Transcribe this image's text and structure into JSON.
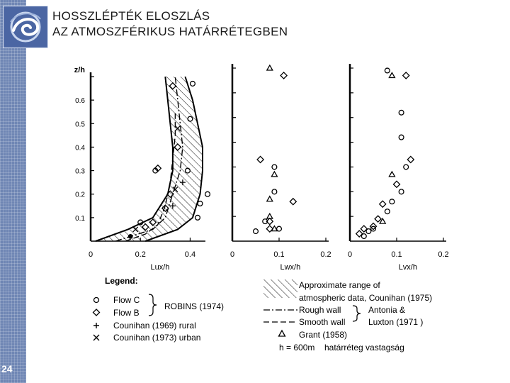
{
  "slide": {
    "title_line1": "HOSSZLÉPTÉK ELOSZLÁS",
    "title_line2": "AZ ATMOSZFÉRIKUS HATÁRRÉTEGBEN",
    "page_number": "24",
    "logo_icon": "swirl-logo-icon",
    "sidebar_color": "#6f86b4"
  },
  "chart_data": [
    {
      "type": "scatter",
      "panel": "Lux",
      "ylabel": "z/h",
      "xlabel": "Lux/h",
      "xlim": [
        0,
        0.45
      ],
      "ylim": [
        0,
        0.7
      ],
      "xticks": [
        "0",
        "0.2",
        "0.4"
      ],
      "yticks": [
        "0.1",
        "0.2",
        "0.3",
        "0.4",
        "0.5",
        "0.6"
      ],
      "series": [
        {
          "name": "Flow C",
          "marker": "circle",
          "points": [
            [
              0.41,
              0.67
            ],
            [
              0.4,
              0.52
            ],
            [
              0.39,
              0.3
            ],
            [
              0.47,
              0.2
            ],
            [
              0.44,
              0.16
            ],
            [
              0.43,
              0.1
            ],
            [
              0.26,
              0.3
            ],
            [
              0.2,
              0.08
            ]
          ]
        },
        {
          "name": "Flow B",
          "marker": "diamond",
          "points": [
            [
              0.33,
              0.66
            ],
            [
              0.35,
              0.4
            ],
            [
              0.27,
              0.31
            ],
            [
              0.32,
              0.2
            ],
            [
              0.3,
              0.14
            ],
            [
              0.25,
              0.08
            ],
            [
              0.22,
              0.06
            ]
          ]
        },
        {
          "name": "Counihan (1969) rural",
          "marker": "plus",
          "points": [
            [
              0.37,
              0.25
            ],
            [
              0.33,
              0.15
            ]
          ]
        },
        {
          "name": "Counihan (1973) urban",
          "marker": "cross",
          "points": [
            [
              0.35,
              0.48
            ],
            [
              0.34,
              0.22
            ],
            [
              0.18,
              0.05
            ]
          ]
        },
        {
          "name": "",
          "marker": "dot",
          "points": [
            [
              0.16,
              0.02
            ]
          ]
        }
      ],
      "curves": [
        {
          "name": "Approximate range of atmospheric data, Counihan (1975)",
          "style": "band-left",
          "points": [
            [
              0.02,
              0.0
            ],
            [
              0.15,
              0.05
            ],
            [
              0.25,
              0.1
            ],
            [
              0.31,
              0.2
            ],
            [
              0.33,
              0.3
            ],
            [
              0.33,
              0.4
            ],
            [
              0.32,
              0.5
            ],
            [
              0.31,
              0.6
            ],
            [
              0.3,
              0.7
            ]
          ]
        },
        {
          "name": "Approximate range of atmospheric data, Counihan (1975)",
          "style": "band-right",
          "points": [
            [
              0.22,
              0.0
            ],
            [
              0.35,
              0.05
            ],
            [
              0.41,
              0.1
            ],
            [
              0.44,
              0.2
            ],
            [
              0.45,
              0.3
            ],
            [
              0.45,
              0.4
            ],
            [
              0.43,
              0.5
            ],
            [
              0.41,
              0.6
            ],
            [
              0.38,
              0.7
            ]
          ]
        },
        {
          "name": "Rough wall",
          "style": "dashdot",
          "points": [
            [
              0.1,
              0.0
            ],
            [
              0.25,
              0.05
            ],
            [
              0.3,
              0.1
            ],
            [
              0.33,
              0.2
            ],
            [
              0.36,
              0.3
            ],
            [
              0.37,
              0.4
            ],
            [
              0.36,
              0.5
            ],
            [
              0.35,
              0.6
            ],
            [
              0.34,
              0.7
            ]
          ]
        },
        {
          "name": "Smooth wall",
          "style": "dashed",
          "points": [
            [
              0.14,
              0.0
            ],
            [
              0.22,
              0.03
            ],
            [
              0.27,
              0.07
            ],
            [
              0.3,
              0.15
            ],
            [
              0.32,
              0.25
            ],
            [
              0.33,
              0.35
            ],
            [
              0.34,
              0.45
            ],
            [
              0.34,
              0.55
            ]
          ]
        }
      ]
    },
    {
      "type": "scatter",
      "panel": "Lwx",
      "xlabel": "Lwx/h",
      "xlim": [
        0,
        0.2
      ],
      "ylim": [
        0,
        0.7
      ],
      "xticks": [
        "0",
        "0.1",
        "0.2"
      ],
      "series": [
        {
          "name": "Flow C",
          "marker": "circle",
          "points": [
            [
              0.09,
              0.3
            ],
            [
              0.09,
              0.2
            ],
            [
              0.1,
              0.05
            ],
            [
              0.05,
              0.04
            ],
            [
              0.07,
              0.08
            ]
          ]
        },
        {
          "name": "Flow B",
          "marker": "diamond",
          "points": [
            [
              0.11,
              0.67
            ],
            [
              0.06,
              0.33
            ],
            [
              0.13,
              0.16
            ],
            [
              0.08,
              0.08
            ],
            [
              0.08,
              0.05
            ]
          ]
        },
        {
          "name": "Grant (1958)",
          "marker": "triangle",
          "points": [
            [
              0.08,
              0.7
            ],
            [
              0.09,
              0.27
            ],
            [
              0.08,
              0.17
            ],
            [
              0.08,
              0.1
            ],
            [
              0.09,
              0.05
            ]
          ]
        }
      ]
    },
    {
      "type": "scatter",
      "panel": "Lvx",
      "xlabel": "Lvx/h",
      "xlim": [
        0,
        0.2
      ],
      "ylim": [
        0,
        0.7
      ],
      "xticks": [
        "0",
        "0.1",
        "0.2"
      ],
      "series": [
        {
          "name": "Flow C",
          "marker": "circle",
          "points": [
            [
              0.08,
              0.69
            ],
            [
              0.11,
              0.52
            ],
            [
              0.11,
              0.42
            ],
            [
              0.12,
              0.3
            ],
            [
              0.11,
              0.2
            ],
            [
              0.09,
              0.16
            ],
            [
              0.08,
              0.12
            ],
            [
              0.05,
              0.05
            ],
            [
              0.04,
              0.04
            ],
            [
              0.03,
              0.02
            ]
          ]
        },
        {
          "name": "Flow B",
          "marker": "diamond",
          "points": [
            [
              0.12,
              0.67
            ],
            [
              0.13,
              0.33
            ],
            [
              0.1,
              0.23
            ],
            [
              0.07,
              0.15
            ],
            [
              0.06,
              0.09
            ],
            [
              0.05,
              0.06
            ],
            [
              0.03,
              0.05
            ],
            [
              0.02,
              0.03
            ]
          ]
        },
        {
          "name": "Grant (1958)",
          "marker": "triangle",
          "points": [
            [
              0.09,
              0.67
            ],
            [
              0.09,
              0.27
            ],
            [
              0.07,
              0.08
            ]
          ]
        }
      ]
    }
  ],
  "legend": {
    "heading": "Legend:",
    "flow_c": "Flow  C",
    "flow_b": "Flow  B",
    "robins": "ROBINS  (1974)",
    "rural": "Counihan  (1969)  rural",
    "urban": "Counihan  (1973)  urban",
    "band_1": "Approximate  range  of",
    "band_2": "atmospheric  data, Counihan (1975)",
    "rough": "Rough  wall",
    "smooth": "Smooth  wall",
    "antonia_1": "Antonia  &",
    "antonia_2": "Luxton  (1971 )",
    "grant": "Grant  (1958)",
    "h_def": "h  =  600m",
    "h_note": "határréteg vastagság"
  }
}
